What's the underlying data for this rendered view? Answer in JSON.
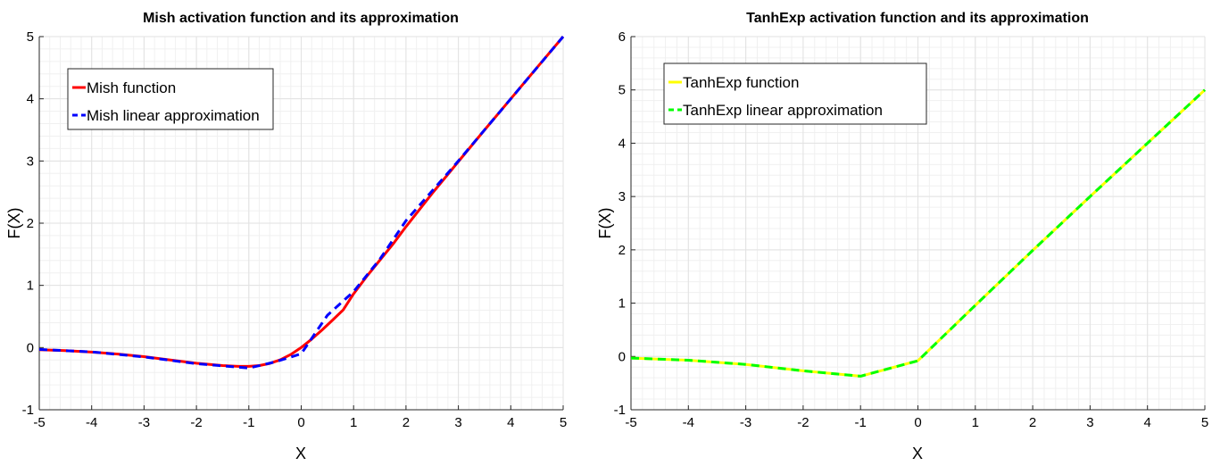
{
  "chart_data": [
    {
      "type": "line",
      "title": "Mish activation function and its approximation",
      "xlabel": "X",
      "ylabel": "F(X)",
      "xlim": [
        -5,
        5
      ],
      "ylim": [
        -1,
        5
      ],
      "xticks": [
        "-5",
        "-4",
        "-3",
        "-2",
        "-1",
        "0",
        "1",
        "2",
        "3",
        "4",
        "5"
      ],
      "yticks": [
        "-1",
        "0",
        "1",
        "2",
        "3",
        "4",
        "5"
      ],
      "grid": true,
      "legend_position": "top-left",
      "series": [
        {
          "name": "Mish function",
          "color": "#ff0000",
          "style": "solid",
          "x": [
            -5,
            -4.5,
            -4,
            -3.5,
            -3,
            -2.5,
            -2,
            -1.5,
            -1.2,
            -1,
            -0.8,
            -0.6,
            -0.4,
            -0.2,
            0,
            0.2,
            0.4,
            0.6,
            0.8,
            1,
            1.25,
            1.5,
            1.75,
            2,
            2.5,
            3,
            3.5,
            4,
            4.5,
            5
          ],
          "y": [
            -0.034,
            -0.05,
            -0.073,
            -0.104,
            -0.146,
            -0.2,
            -0.252,
            -0.289,
            -0.303,
            -0.303,
            -0.29,
            -0.255,
            -0.197,
            -0.112,
            0,
            0.136,
            0.285,
            0.443,
            0.605,
            0.865,
            1.145,
            1.404,
            1.661,
            1.944,
            2.48,
            2.99,
            3.5,
            4.0,
            4.5,
            5.0
          ]
        },
        {
          "name": "Mish linear approximation",
          "color": "#0000ff",
          "style": "dashed",
          "x": [
            -5,
            -4,
            -3,
            -2,
            -1,
            -0.5,
            0,
            0.5,
            1,
            1.5,
            2,
            2.5,
            3,
            4,
            5
          ],
          "y": [
            -0.03,
            -0.07,
            -0.15,
            -0.26,
            -0.33,
            -0.23,
            -0.1,
            0.52,
            0.9,
            1.42,
            2.04,
            2.52,
            3.0,
            4.0,
            5.0
          ]
        }
      ]
    },
    {
      "type": "line",
      "title": "TanhExp activation function and its approximation",
      "xlabel": "X",
      "ylabel": "F(X)",
      "xlim": [
        -5,
        5
      ],
      "ylim": [
        -1,
        6
      ],
      "xticks": [
        "-5",
        "-4",
        "-3",
        "-2",
        "-1",
        "0",
        "1",
        "2",
        "3",
        "4",
        "5"
      ],
      "yticks": [
        "-1",
        "0",
        "1",
        "2",
        "3",
        "4",
        "5",
        "6"
      ],
      "grid": true,
      "legend_position": "top-left",
      "series": [
        {
          "name": "TanhExp function",
          "color": "#ffff00",
          "style": "solid",
          "x": [
            -5,
            -4,
            -3,
            -2,
            -1,
            0,
            1,
            2,
            3,
            4,
            5
          ],
          "y": [
            -0.03,
            -0.07,
            -0.15,
            -0.27,
            -0.37,
            -0.08,
            0.96,
            1.99,
            3.0,
            4.0,
            5.0
          ]
        },
        {
          "name": "TanhExp linear approximation",
          "color": "#00ff00",
          "style": "dashed",
          "x": [
            -5,
            -4,
            -3,
            -2,
            -1,
            0,
            1,
            2,
            3,
            4,
            5
          ],
          "y": [
            -0.03,
            -0.07,
            -0.15,
            -0.27,
            -0.37,
            -0.08,
            0.96,
            1.99,
            3.0,
            4.0,
            5.0
          ]
        }
      ]
    }
  ]
}
